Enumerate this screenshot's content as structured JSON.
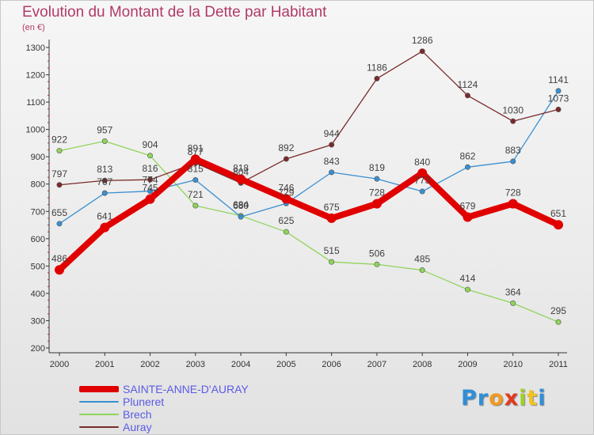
{
  "title": "Evolution du Montant de la Dette par Habitant",
  "subtitle": "(en €)",
  "logo": {
    "text": "Proxiti",
    "letter_colors": [
      "#2f8fd8",
      "#2f8fd8",
      "#f39a1e",
      "#e23a1e",
      "#9fcf2a",
      "#f2c21e",
      "#2f8fd8"
    ]
  },
  "chart_data": {
    "type": "line",
    "title": "Evolution du Montant de la Dette par Habitant",
    "subtitle": "(en €)",
    "x": [
      "2000",
      "2001",
      "2002",
      "2003",
      "2004",
      "2005",
      "2006",
      "2007",
      "2008",
      "2009",
      "2010",
      "2011"
    ],
    "y_ticks": [
      "200",
      "300",
      "400",
      "500",
      "600",
      "700",
      "800",
      "900",
      "1000",
      "1100",
      "1200",
      "1300"
    ],
    "ylim": [
      200,
      1300
    ],
    "grid": false,
    "legend_position": "bottom-left",
    "series": [
      {
        "name": "SAINTE-ANNE-D'AURAY",
        "color": "#e00000",
        "values": [
          486,
          641,
          745,
          891,
          818,
          746,
          675,
          728,
          840,
          679,
          728,
          651
        ]
      },
      {
        "name": "Pluneret",
        "color": "#3a8fd0",
        "values": [
          655,
          767,
          774,
          815,
          680,
          729,
          843,
          819,
          773,
          862,
          883,
          1141
        ]
      },
      {
        "name": "Brech",
        "color": "#8fd45a",
        "values": [
          922,
          957,
          904,
          721,
          684,
          625,
          515,
          506,
          485,
          414,
          364,
          295
        ]
      },
      {
        "name": "Auray",
        "color": "#7a2a2a",
        "values": [
          797,
          813,
          816,
          877,
          804,
          892,
          944,
          1186,
          1286,
          1124,
          1030,
          1073
        ]
      }
    ]
  }
}
